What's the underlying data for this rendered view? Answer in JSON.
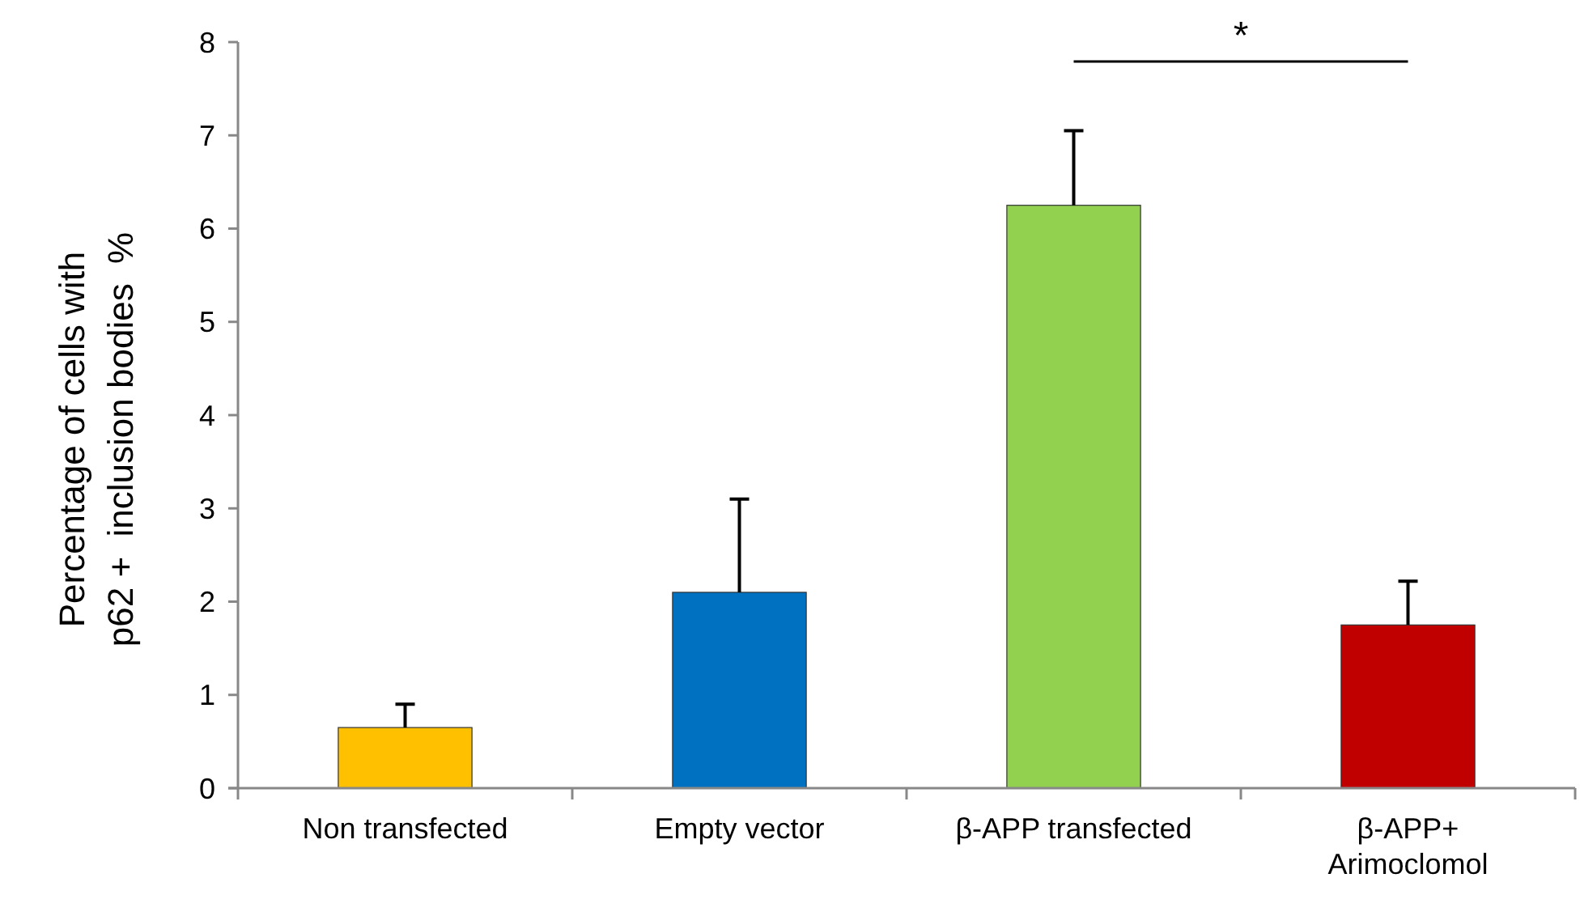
{
  "chart_data": {
    "type": "bar",
    "ylabel": "Percentage of cells with\np62 +  inclusion bodies  %",
    "categories": [
      "Non transfected",
      "Empty vector",
      "β-APP transfected",
      "β-APP+ Arimoclomol"
    ],
    "values": [
      0.65,
      2.1,
      6.25,
      1.75
    ],
    "colors": [
      "#ffc000",
      "#0070c0",
      "#92d050",
      "#c00000"
    ],
    "errors": [
      [
        0.65,
        0.9
      ],
      [
        2.1,
        3.1
      ],
      [
        6.25,
        7.05
      ],
      [
        1.75,
        2.22
      ]
    ],
    "ylim": [
      0,
      8
    ],
    "yticks": [
      0,
      1,
      2,
      3,
      4,
      5,
      6,
      7,
      8
    ],
    "grid": false,
    "annotations": [
      "*"
    ]
  }
}
